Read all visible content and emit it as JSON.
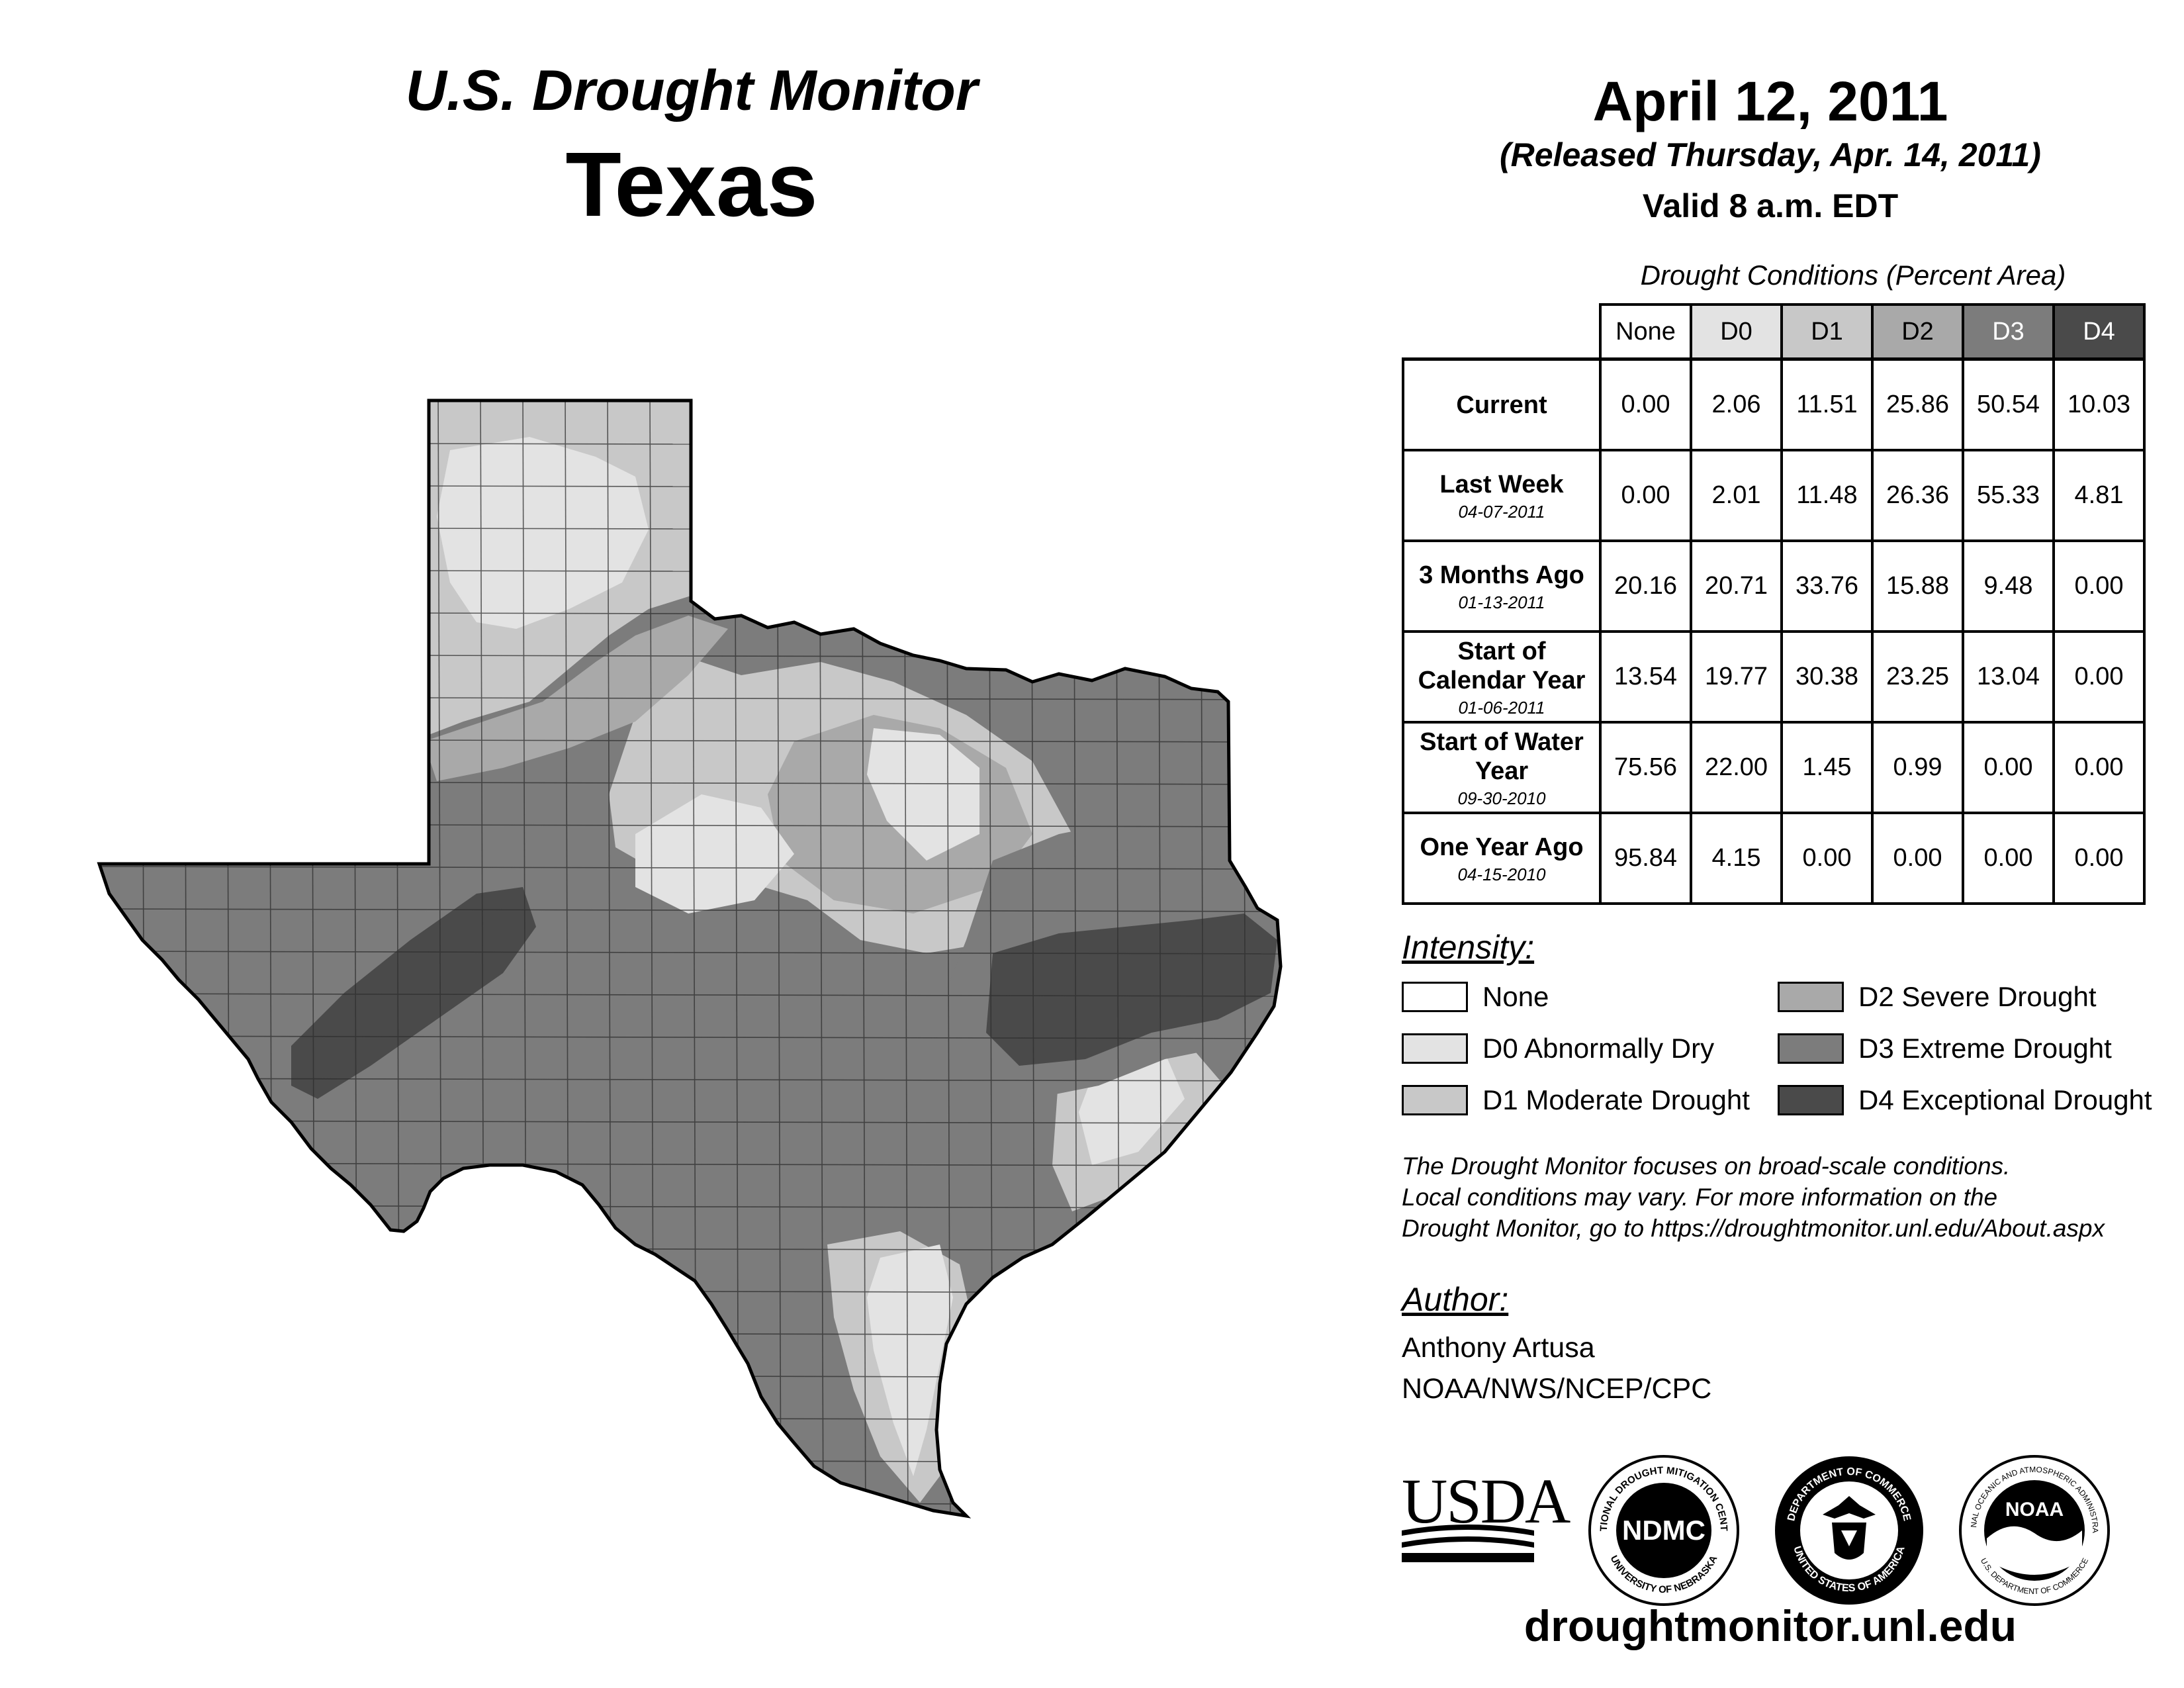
{
  "header": {
    "monitor_title": "U.S. Drought Monitor",
    "state": "Texas",
    "date": "April 12, 2011",
    "released": "(Released Thursday, Apr. 14, 2011)",
    "valid": "Valid 8 a.m. EDT"
  },
  "table": {
    "title": "Drought Conditions (Percent Area)",
    "columns": [
      {
        "label": "None",
        "color": "#ffffff",
        "text_color": "#000000"
      },
      {
        "label": "D0",
        "color": "#e3e3e3",
        "text_color": "#000000"
      },
      {
        "label": "D1",
        "color": "#c8c8c8",
        "text_color": "#000000"
      },
      {
        "label": "D2",
        "color": "#a9a9a9",
        "text_color": "#000000"
      },
      {
        "label": "D3",
        "color": "#7c7c7c",
        "text_color": "#ffffff"
      },
      {
        "label": "D4",
        "color": "#4a4a4a",
        "text_color": "#ffffff"
      }
    ],
    "rows": [
      {
        "label": "Current",
        "date": "",
        "values": [
          "0.00",
          "2.06",
          "11.51",
          "25.86",
          "50.54",
          "10.03"
        ]
      },
      {
        "label": "Last Week",
        "date": "04-07-2011",
        "values": [
          "0.00",
          "2.01",
          "11.48",
          "26.36",
          "55.33",
          "4.81"
        ]
      },
      {
        "label": "3 Months Ago",
        "date": "01-13-2011",
        "values": [
          "20.16",
          "20.71",
          "33.76",
          "15.88",
          "9.48",
          "0.00"
        ]
      },
      {
        "label": "Start of Calendar Year",
        "date": "01-06-2011",
        "values": [
          "13.54",
          "19.77",
          "30.38",
          "23.25",
          "13.04",
          "0.00"
        ]
      },
      {
        "label": "Start of Water Year",
        "date": "09-30-2010",
        "values": [
          "75.56",
          "22.00",
          "1.45",
          "0.99",
          "0.00",
          "0.00"
        ]
      },
      {
        "label": "One Year Ago",
        "date": "04-15-2010",
        "values": [
          "95.84",
          "4.15",
          "0.00",
          "0.00",
          "0.00",
          "0.00"
        ]
      }
    ]
  },
  "legend": {
    "heading": "Intensity:",
    "items": [
      {
        "label": "None",
        "color": "#ffffff"
      },
      {
        "label": "D0 Abnormally Dry",
        "color": "#e3e3e3"
      },
      {
        "label": "D1 Moderate Drought",
        "color": "#c8c8c8"
      },
      {
        "label": "D2 Severe Drought",
        "color": "#a9a9a9"
      },
      {
        "label": "D3 Extreme Drought",
        "color": "#7c7c7c"
      },
      {
        "label": "D4 Exceptional Drought",
        "color": "#4a4a4a"
      }
    ]
  },
  "note": {
    "lines": [
      "The Drought Monitor focuses on broad-scale conditions.",
      "Local conditions may vary. For more information on the",
      "Drought Monitor, go to https://droughtmonitor.unl.edu/About.aspx"
    ]
  },
  "author": {
    "heading": "Author:",
    "name": "Anthony Artusa",
    "org": "NOAA/NWS/NCEP/CPC"
  },
  "logos": {
    "usda": "USDA",
    "ndmc": "NDMC",
    "ndmc_ring_top": "NATIONAL DROUGHT MITIGATION CENTER",
    "ndmc_ring_bottom": "UNIVERSITY OF NEBRASKA",
    "doc_ring_top": "DEPARTMENT OF COMMERCE",
    "doc_ring_bottom": "UNITED STATES OF AMERICA",
    "noaa": "NOAA",
    "noaa_ring_top": "NATIONAL OCEANIC AND ATMOSPHERIC ADMINISTRATION",
    "noaa_ring_bottom": "U.S. DEPARTMENT OF COMMERCE"
  },
  "footer": {
    "url": "droughtmonitor.unl.edu"
  }
}
